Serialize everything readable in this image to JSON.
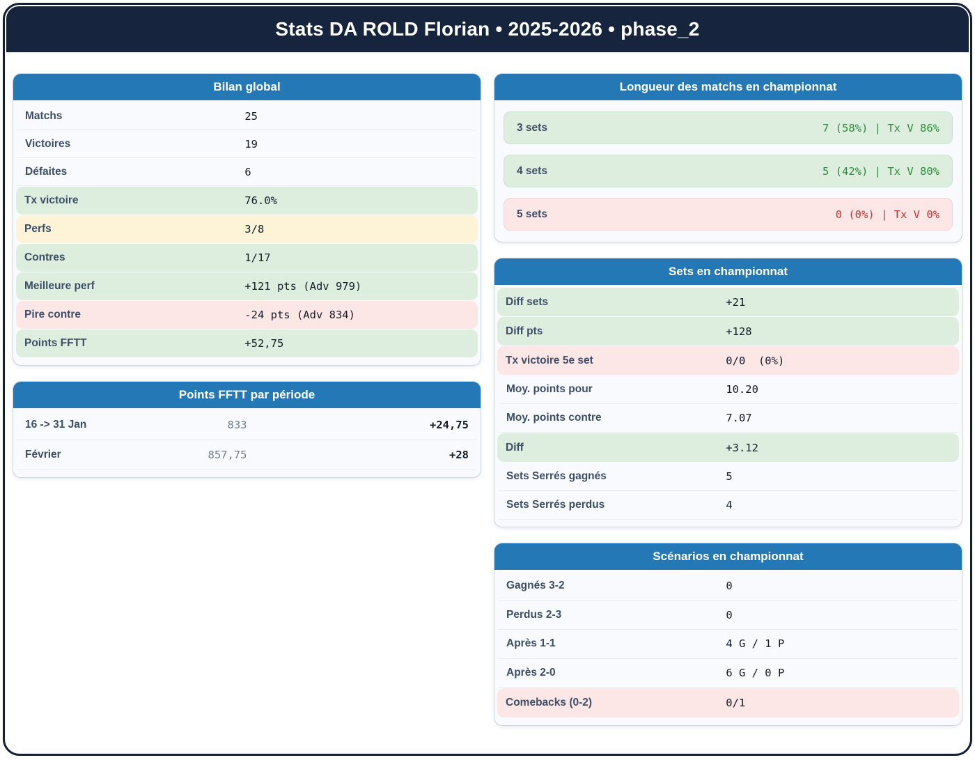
{
  "header": {
    "title": "Stats DA ROLD Florian • 2025-2026 • phase_2"
  },
  "colors": {
    "navy": "#17243d",
    "card_header_blue": "#2478b5",
    "green_row_bg": "#ddeede",
    "pink_row_bg": "#fce6e6",
    "yellow_row_bg": "#fdf3d7",
    "green_text": "#2e8b3e",
    "red_text": "#c2392f"
  },
  "cards": {
    "bilan": {
      "title": "Bilan global",
      "rows": [
        {
          "label": "Matchs",
          "value": "25"
        },
        {
          "label": "Victoires",
          "value": "19"
        },
        {
          "label": "Défaites",
          "value": "6"
        },
        {
          "label": "Tx victoire",
          "value": "76.0%"
        },
        {
          "label": "Perfs",
          "value": "3/8"
        },
        {
          "label": "Contres",
          "value": "1/17"
        },
        {
          "label": "Meilleure perf",
          "value": "+121 pts (Adv 979)"
        },
        {
          "label": "Pire contre",
          "value": "-24 pts (Adv 834)"
        },
        {
          "label": "Points FFTT",
          "value": "+52,75"
        }
      ]
    },
    "periodes": {
      "title": "Points FFTT par période",
      "rows": [
        {
          "label": "16 -> 31 Jan",
          "points": "833",
          "delta": "+24,75"
        },
        {
          "label": "Février",
          "points": "857,75",
          "delta": "+28"
        }
      ]
    },
    "longueur": {
      "title": "Longueur des matchs en championnat",
      "rows": [
        {
          "label": "3 sets",
          "value": "7 (58%) | Tx V 86%"
        },
        {
          "label": "4 sets",
          "value": "5 (42%) | Tx V 80%"
        },
        {
          "label": "5 sets",
          "value": "0 (0%) | Tx V 0%"
        }
      ]
    },
    "sets": {
      "title": "Sets en championnat",
      "rows": [
        {
          "label": "Diff sets",
          "value": "+21"
        },
        {
          "label": "Diff pts",
          "value": "+128"
        },
        {
          "label": "Tx victoire 5e set",
          "value": "0/0  (0%)"
        },
        {
          "label": "Moy. points pour",
          "value": "10.20"
        },
        {
          "label": "Moy. points contre",
          "value": "7.07"
        },
        {
          "label": "Diff",
          "value": "+3.12"
        },
        {
          "label": "Sets Serrés gagnés",
          "value": "5"
        },
        {
          "label": "Sets Serrés perdus",
          "value": "4"
        }
      ]
    },
    "scenarios": {
      "title": "Scénarios en championnat",
      "rows": [
        {
          "label": "Gagnés 3-2",
          "value": "0"
        },
        {
          "label": "Perdus 2-3",
          "value": "0"
        },
        {
          "label": "Après 1-1",
          "value": "4 G / 1 P"
        },
        {
          "label": "Après 2-0",
          "value": "6 G / 0 P"
        },
        {
          "label": "Comebacks (0-2)",
          "value": "0/1"
        }
      ]
    }
  }
}
